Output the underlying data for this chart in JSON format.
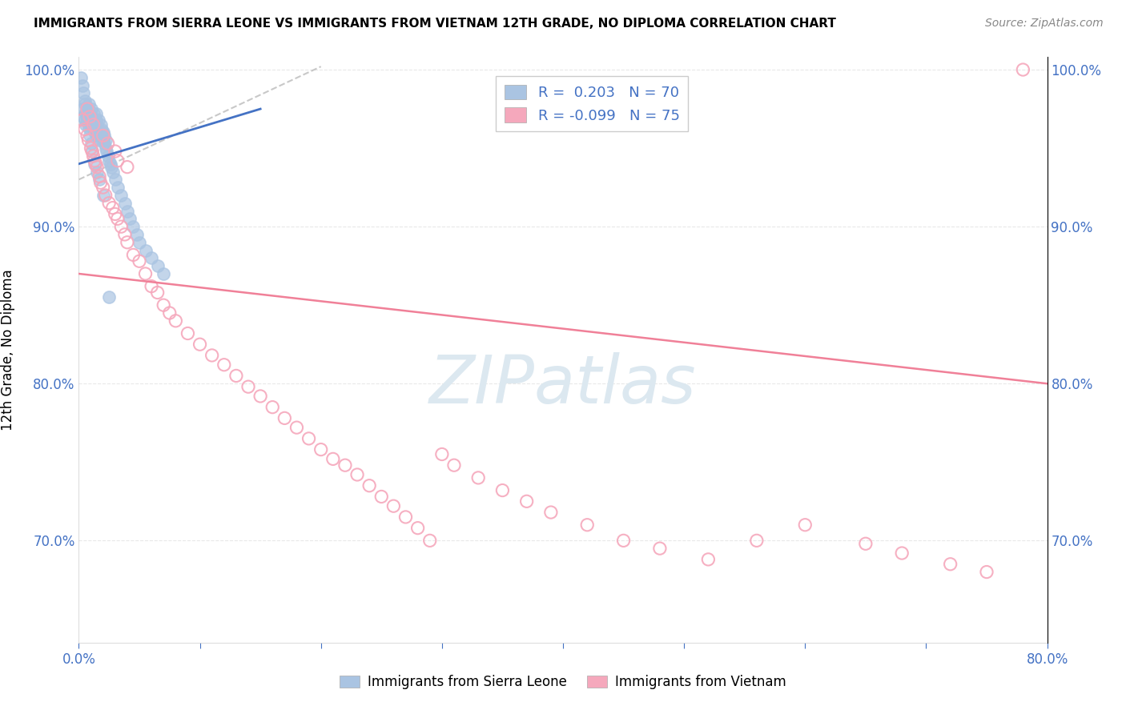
{
  "title": "IMMIGRANTS FROM SIERRA LEONE VS IMMIGRANTS FROM VIETNAM 12TH GRADE, NO DIPLOMA CORRELATION CHART",
  "source": "Source: ZipAtlas.com",
  "ylabel": "12th Grade, No Diploma",
  "legend_label_blue": "Immigrants from Sierra Leone",
  "legend_label_pink": "Immigrants from Vietnam",
  "R_blue": 0.203,
  "N_blue": 70,
  "R_pink": -0.099,
  "N_pink": 75,
  "xlim": [
    0.0,
    0.8
  ],
  "ylim": [
    0.635,
    1.008
  ],
  "yticks": [
    0.7,
    0.8,
    0.9,
    1.0
  ],
  "yticklabels": [
    "70.0%",
    "80.0%",
    "90.0%",
    "100.0%"
  ],
  "blue_scatter_color": "#aac4e2",
  "pink_scatter_color": "#f5a8bc",
  "blue_line_color": "#4472c4",
  "pink_line_color": "#f08098",
  "dashed_line_color": "#bbbbbb",
  "watermark_text": "ZIPatlas",
  "watermark_color": "#dce8f0",
  "title_color": "#000000",
  "source_color": "#888888",
  "tick_label_color": "#4472c4",
  "grid_color": "#e8e8e8",
  "blue_scatter_x": [
    0.003,
    0.004,
    0.005,
    0.005,
    0.006,
    0.006,
    0.007,
    0.007,
    0.008,
    0.008,
    0.009,
    0.009,
    0.01,
    0.01,
    0.011,
    0.011,
    0.012,
    0.012,
    0.013,
    0.014,
    0.014,
    0.015,
    0.015,
    0.016,
    0.016,
    0.017,
    0.018,
    0.018,
    0.019,
    0.019,
    0.02,
    0.02,
    0.021,
    0.021,
    0.022,
    0.022,
    0.023,
    0.024,
    0.025,
    0.026,
    0.027,
    0.028,
    0.03,
    0.032,
    0.035,
    0.038,
    0.04,
    0.042,
    0.045,
    0.048,
    0.05,
    0.055,
    0.06,
    0.065,
    0.07,
    0.002,
    0.003,
    0.004,
    0.005,
    0.006,
    0.007,
    0.008,
    0.009,
    0.01,
    0.011,
    0.013,
    0.015,
    0.017,
    0.02,
    0.025
  ],
  "blue_scatter_y": [
    0.975,
    0.97,
    0.968,
    0.98,
    0.972,
    0.965,
    0.968,
    0.975,
    0.97,
    0.978,
    0.965,
    0.972,
    0.968,
    0.975,
    0.963,
    0.97,
    0.965,
    0.972,
    0.96,
    0.968,
    0.972,
    0.965,
    0.958,
    0.962,
    0.968,
    0.955,
    0.96,
    0.965,
    0.958,
    0.962,
    0.955,
    0.96,
    0.953,
    0.958,
    0.95,
    0.955,
    0.948,
    0.945,
    0.942,
    0.94,
    0.938,
    0.935,
    0.93,
    0.925,
    0.92,
    0.915,
    0.91,
    0.905,
    0.9,
    0.895,
    0.89,
    0.885,
    0.88,
    0.875,
    0.87,
    0.995,
    0.99,
    0.985,
    0.978,
    0.973,
    0.968,
    0.963,
    0.958,
    0.953,
    0.948,
    0.94,
    0.935,
    0.93,
    0.92,
    0.855
  ],
  "pink_scatter_x": [
    0.003,
    0.005,
    0.007,
    0.008,
    0.01,
    0.011,
    0.012,
    0.013,
    0.014,
    0.015,
    0.017,
    0.018,
    0.02,
    0.022,
    0.025,
    0.028,
    0.03,
    0.032,
    0.035,
    0.038,
    0.04,
    0.045,
    0.05,
    0.055,
    0.06,
    0.065,
    0.07,
    0.075,
    0.08,
    0.09,
    0.1,
    0.11,
    0.12,
    0.13,
    0.14,
    0.15,
    0.16,
    0.17,
    0.18,
    0.19,
    0.2,
    0.21,
    0.22,
    0.23,
    0.24,
    0.25,
    0.26,
    0.27,
    0.28,
    0.29,
    0.3,
    0.31,
    0.33,
    0.35,
    0.37,
    0.39,
    0.42,
    0.45,
    0.48,
    0.52,
    0.56,
    0.6,
    0.65,
    0.68,
    0.72,
    0.75,
    0.007,
    0.009,
    0.012,
    0.02,
    0.024,
    0.03,
    0.032,
    0.04,
    0.78
  ],
  "pink_scatter_y": [
    0.968,
    0.962,
    0.958,
    0.955,
    0.95,
    0.948,
    0.945,
    0.942,
    0.94,
    0.938,
    0.932,
    0.928,
    0.925,
    0.92,
    0.915,
    0.912,
    0.908,
    0.905,
    0.9,
    0.895,
    0.89,
    0.882,
    0.878,
    0.87,
    0.862,
    0.858,
    0.85,
    0.845,
    0.84,
    0.832,
    0.825,
    0.818,
    0.812,
    0.805,
    0.798,
    0.792,
    0.785,
    0.778,
    0.772,
    0.765,
    0.758,
    0.752,
    0.748,
    0.742,
    0.735,
    0.728,
    0.722,
    0.715,
    0.708,
    0.7,
    0.755,
    0.748,
    0.74,
    0.732,
    0.725,
    0.718,
    0.71,
    0.7,
    0.695,
    0.688,
    0.7,
    0.71,
    0.698,
    0.692,
    0.685,
    0.68,
    0.975,
    0.97,
    0.965,
    0.958,
    0.953,
    0.948,
    0.942,
    0.938,
    1.0
  ],
  "blue_trendline_x": [
    0.0,
    0.15
  ],
  "blue_trendline_y": [
    0.94,
    0.975
  ],
  "pink_trendline_x": [
    0.0,
    0.8
  ],
  "pink_trendline_y": [
    0.87,
    0.8
  ],
  "dashed_line_x": [
    0.0,
    0.2
  ],
  "dashed_line_y": [
    0.93,
    1.002
  ]
}
